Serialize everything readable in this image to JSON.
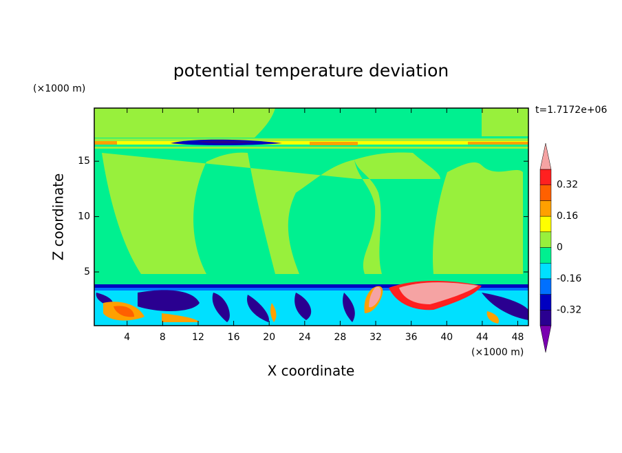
{
  "chart_data": {
    "type": "contour",
    "title": "potential temperature deviation",
    "x_label": "X coordinate",
    "y_label": "Z coordinate",
    "x_unit": "(×1000 m)",
    "y_unit": "(×1000 m)",
    "annotation": "t=1.7172e+06",
    "xlim": [
      0.3,
      49.2
    ],
    "ylim": [
      0.15,
      19.8
    ],
    "xticks": [
      4,
      8,
      12,
      16,
      20,
      24,
      28,
      32,
      36,
      40,
      44,
      48
    ],
    "yticks": [
      5,
      10,
      15
    ],
    "colorbar": {
      "levels": [
        -0.4,
        -0.32,
        -0.24,
        -0.16,
        -0.08,
        0,
        0.08,
        0.16,
        0.24,
        0.32,
        0.4
      ],
      "colors": [
        "#7a00b0",
        "#2a0090",
        "#0000c0",
        "#0070ff",
        "#00e0ff",
        "#00f090",
        "#98f03c",
        "#ffff00",
        "#ffa000",
        "#ff6000",
        "#ff2020",
        "#f5a3a3"
      ],
      "ticks": [
        -0.32,
        -0.16,
        0,
        0.16,
        0.32
      ]
    }
  }
}
